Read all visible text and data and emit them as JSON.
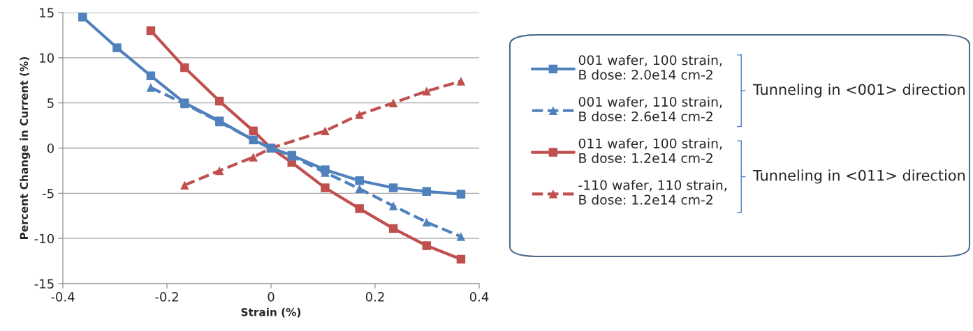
{
  "chart_data": {
    "type": "line",
    "xlabel": "Strain (%)",
    "ylabel": "Percent Change in Current (%)",
    "xlim": [
      -0.4,
      0.4
    ],
    "xticks": [
      -0.4,
      -0.2,
      0,
      0.2,
      0.4
    ],
    "ylim": [
      -15,
      15
    ],
    "yticks": [
      -15,
      -10,
      -5,
      0,
      5,
      10,
      15
    ],
    "grid": "y",
    "legend": "right",
    "annotations": [
      "Tunneling in <001> direction",
      "Tunneling in <011> direction"
    ],
    "series": [
      {
        "name": "001 wafer, 100 strain,\nB dose: 2.0e14 cm-2",
        "color": "#4f81bd",
        "marker": "square",
        "line_style": "solid",
        "x": [
          -0.362,
          -0.296,
          -0.231,
          -0.166,
          -0.099,
          -0.034,
          0,
          0.04,
          0.104,
          0.17,
          0.235,
          0.299,
          0.365
        ],
        "values": [
          14.5,
          11.1,
          8.0,
          5.0,
          3.0,
          0.9,
          0,
          -0.8,
          -2.4,
          -3.6,
          -4.4,
          -4.8,
          -5.1
        ]
      },
      {
        "name": "001 wafer, 110 strain,\nB dose: 2.6e14 cm-2",
        "color": "#4f81bd",
        "marker": "triangle",
        "line_style": "dashed",
        "x": [
          -0.231,
          -0.166,
          -0.099,
          -0.034,
          0,
          0.04,
          0.104,
          0.17,
          0.235,
          0.299,
          0.365
        ],
        "values": [
          6.7,
          4.9,
          2.9,
          0.9,
          0,
          -0.9,
          -2.7,
          -4.5,
          -6.4,
          -8.2,
          -9.8
        ]
      },
      {
        "name": "011 wafer, 100 strain,\nB dose: 1.2e14 cm-2",
        "color": "#c0504d",
        "marker": "square",
        "line_style": "solid",
        "x": [
          -0.231,
          -0.166,
          -0.099,
          -0.034,
          0,
          0.04,
          0.104,
          0.17,
          0.235,
          0.299,
          0.365
        ],
        "values": [
          13.0,
          8.9,
          5.2,
          1.9,
          0,
          -1.6,
          -4.4,
          -6.7,
          -8.9,
          -10.8,
          -12.3
        ]
      },
      {
        "name": "-110 wafer, 110 strain,\nB dose: 1.2e14 cm-2",
        "color": "#c0504d",
        "marker": "triangle",
        "line_style": "dashed",
        "x": [
          -0.166,
          -0.099,
          -0.034,
          0,
          0.104,
          0.17,
          0.235,
          0.299,
          0.365
        ],
        "values": [
          -4.1,
          -2.5,
          -1.0,
          0,
          1.9,
          3.7,
          5.0,
          6.3,
          7.4
        ]
      }
    ]
  }
}
